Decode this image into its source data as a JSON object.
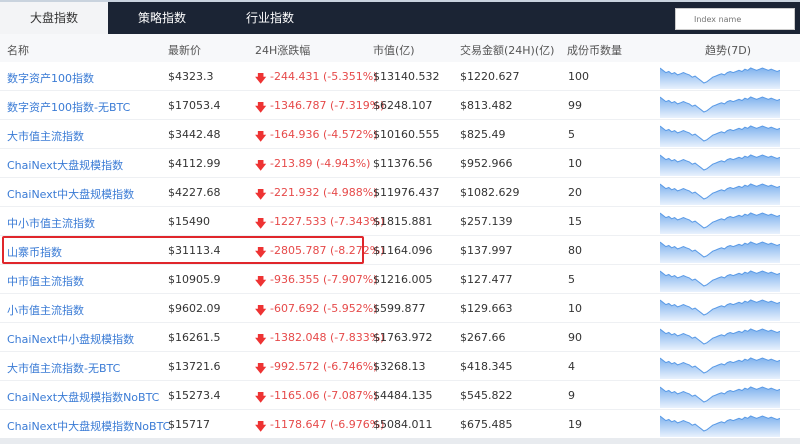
{
  "tabs": [
    {
      "label": "大盘指数",
      "active": true
    },
    {
      "label": "策略指数"
    },
    {
      "label": "行业指数"
    }
  ],
  "search": {
    "placeholder": "Index name"
  },
  "columns": [
    "名称",
    "最新价",
    "24H涨跌幅",
    "市值(亿)",
    "交易金额(24H)(亿)",
    "成份币数量",
    "趋势(7D)"
  ],
  "colors": {
    "link": "#3a7bd5",
    "down": "#e64a4a",
    "highlight": "#e0262b",
    "tabbar": "#1b2434"
  },
  "highlighted_row": 6,
  "trend_7d": [
    8,
    6,
    4,
    5,
    3,
    4,
    2,
    3,
    4,
    3,
    2,
    0,
    1,
    -1,
    -3,
    -5,
    -4,
    -2,
    0,
    1,
    2,
    3,
    2,
    4,
    5,
    4,
    5,
    6,
    5,
    7,
    6,
    8,
    7,
    6,
    7,
    8,
    7,
    6,
    7,
    6,
    5,
    6
  ],
  "rows": [
    {
      "name": "数字资产100指数",
      "price": "$4323.3",
      "change": "-244.431 (-5.351%)",
      "mcap": "$13140.532",
      "volume": "$1220.627",
      "count": "100"
    },
    {
      "name": "数字资产100指数-无BTC",
      "price": "$17053.4",
      "change": "-1346.787 (-7.319%)",
      "mcap": "$6248.107",
      "volume": "$813.482",
      "count": "99"
    },
    {
      "name": "大市值主流指数",
      "price": "$3442.48",
      "change": "-164.936 (-4.572%)",
      "mcap": "$10160.555",
      "volume": "$825.49",
      "count": "5"
    },
    {
      "name": "ChaiNext大盘规模指数",
      "price": "$4112.99",
      "change": "-213.89 (-4.943%)",
      "mcap": "$11376.56",
      "volume": "$952.966",
      "count": "10"
    },
    {
      "name": "ChaiNext中大盘规模指数",
      "price": "$4227.68",
      "change": "-221.932 (-4.988%)",
      "mcap": "$11976.437",
      "volume": "$1082.629",
      "count": "20"
    },
    {
      "name": "中小市值主流指数",
      "price": "$15490",
      "change": "-1227.533 (-7.343%)",
      "mcap": "$1815.881",
      "volume": "$257.139",
      "count": "15"
    },
    {
      "name": "山寨币指数",
      "price": "$31113.4",
      "change": "-2805.787 (-8.272%)",
      "mcap": "$1164.096",
      "volume": "$137.997",
      "count": "80"
    },
    {
      "name": "中市值主流指数",
      "price": "$10905.9",
      "change": "-936.355 (-7.907%)",
      "mcap": "$1216.005",
      "volume": "$127.477",
      "count": "5"
    },
    {
      "name": "小市值主流指数",
      "price": "$9602.09",
      "change": "-607.692 (-5.952%)",
      "mcap": "$599.877",
      "volume": "$129.663",
      "count": "10"
    },
    {
      "name": "ChaiNext中小盘规模指数",
      "price": "$16261.5",
      "change": "-1382.048 (-7.833%)",
      "mcap": "$1763.972",
      "volume": "$267.66",
      "count": "90"
    },
    {
      "name": "大市值主流指数-无BTC",
      "price": "$13721.6",
      "change": "-992.572 (-6.746%)",
      "mcap": "$3268.13",
      "volume": "$418.345",
      "count": "4"
    },
    {
      "name": "ChaiNext大盘规模指数NoBTC",
      "price": "$15273.4",
      "change": "-1165.06 (-7.087%)",
      "mcap": "$4484.135",
      "volume": "$545.822",
      "count": "9"
    },
    {
      "name": "ChaiNext中大盘规模指数NoBTC",
      "price": "$15717",
      "change": "-1178.647 (-6.976%)",
      "mcap": "$5084.011",
      "volume": "$675.485",
      "count": "19"
    }
  ]
}
